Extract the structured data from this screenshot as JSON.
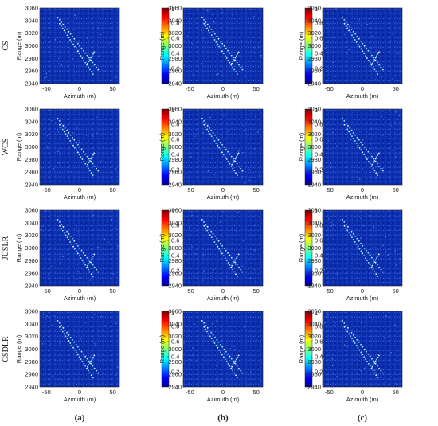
{
  "figure": {
    "row_labels": [
      "CS",
      "WCS",
      "JUSLR",
      "CSDLR"
    ],
    "column_labels": [
      "(a)",
      "(b)",
      "(c)"
    ],
    "colors": {
      "background_low": "#0a2aa8",
      "colormap": [
        "#00008f",
        "#0000ff",
        "#0080ff",
        "#00ffff",
        "#80ff80",
        "#ffff00",
        "#ff8000",
        "#ff0000",
        "#800000"
      ]
    }
  },
  "chart_data": {
    "type": "heatmap",
    "layout": "4x3 grid",
    "xlabel": "Azimuth (m)",
    "ylabel": "Range (m)",
    "xlim": [
      -60,
      60
    ],
    "ylim": [
      2940,
      3060
    ],
    "xticks": [
      -50,
      0,
      50
    ],
    "yticks": [
      2940,
      2960,
      2980,
      3000,
      3020,
      3040,
      3060
    ],
    "colorbar": {
      "range": [
        0,
        1
      ],
      "ticks": [
        0.2,
        0.4,
        0.6,
        0.8,
        1
      ]
    },
    "grid": false,
    "scatterers": {
      "track1": {
        "x": [
          -33,
          28
        ],
        "y": [
          3045,
          2962
        ]
      },
      "track2": {
        "x": [
          -30,
          20
        ],
        "y": [
          3035,
          2955
        ]
      },
      "wing": {
        "x": [
          12,
          22
        ],
        "y": [
          2972,
          2990
        ]
      }
    }
  }
}
